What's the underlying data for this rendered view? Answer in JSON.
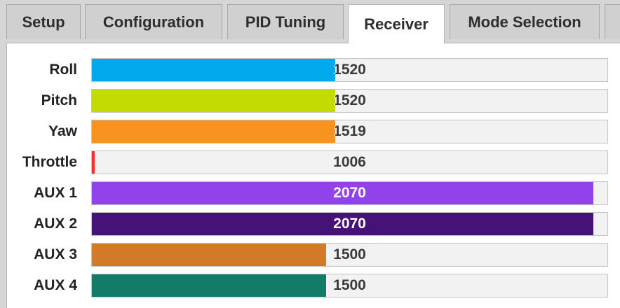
{
  "tabs": [
    {
      "label": "Setup",
      "active": false
    },
    {
      "label": "Configuration",
      "active": false
    },
    {
      "label": "PID Tuning",
      "active": false
    },
    {
      "label": "Receiver",
      "active": true
    },
    {
      "label": "Mode Selection",
      "active": false
    }
  ],
  "receiver": {
    "range": [
      1000,
      2100
    ],
    "channels": [
      {
        "label": "Roll",
        "value": "1520",
        "color": "#00a9ec"
      },
      {
        "label": "Pitch",
        "value": "1520",
        "color": "#c4db00"
      },
      {
        "label": "Yaw",
        "value": "1519",
        "color": "#f7931e"
      },
      {
        "label": "Throttle",
        "value": "1006",
        "color": "#f32f2f"
      },
      {
        "label": "AUX 1",
        "value": "2070",
        "color": "#9142ea"
      },
      {
        "label": "AUX 2",
        "value": "2070",
        "color": "#451378"
      },
      {
        "label": "AUX 3",
        "value": "1500",
        "color": "#d27a28"
      },
      {
        "label": "AUX 4",
        "value": "1500",
        "color": "#137c68"
      }
    ]
  }
}
